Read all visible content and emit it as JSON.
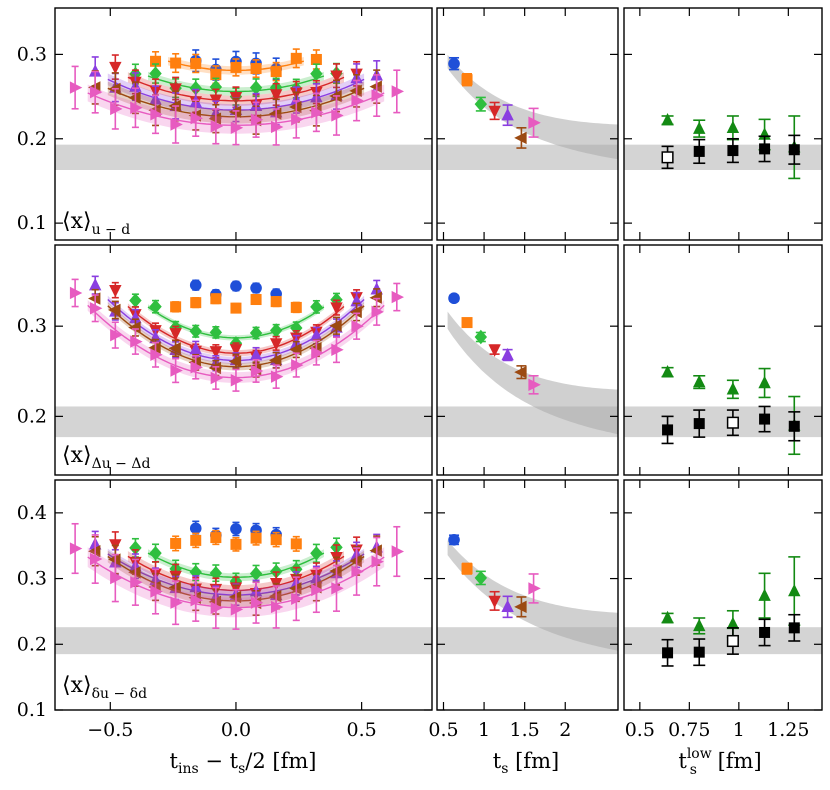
{
  "figure": {
    "columns": [
      {
        "xlabel_main": "t",
        "xlabel_sub": "ins",
        "xlabel_rest": " − t",
        "xlabel_sub2": "s",
        "xlabel_tail": "/2 [fm]"
      },
      {
        "xlabel_main": "t",
        "xlabel_sub": "s",
        "xlabel_tail": " [fm]"
      },
      {
        "xlabel_main": "t",
        "xlabel_sub": "s",
        "xlabel_sup": "low",
        "xlabel_tail": " [fm]"
      }
    ],
    "rows": [
      {
        "label_main": "⟨x⟩",
        "label_sub": "u − d"
      },
      {
        "label_main": "⟨x⟩",
        "label_sub": "Δu − Δd"
      },
      {
        "label_main": "⟨x⟩",
        "label_sub": "δu − δd"
      }
    ]
  },
  "chart_data": [
    {
      "type": "scatter",
      "panel": "row1-col1",
      "xlim": [
        -0.72,
        0.78
      ],
      "ylim": [
        0.08,
        0.355
      ],
      "xticks": [
        "−0.5",
        "0.0",
        "0.5"
      ],
      "xtick_values": [
        -0.5,
        0.0,
        0.5
      ],
      "yticks": [
        "0.1",
        "0.2",
        "0.3"
      ],
      "ytick_values": [
        0.1,
        0.2,
        0.3
      ],
      "band": [
        0.163,
        0.193
      ],
      "series": [
        {
          "color": "#1f4fd8",
          "marker": "circle",
          "half": 0.16,
          "base": 0.288,
          "curv": 0.0,
          "err": 0.012
        },
        {
          "color": "#ff7f0e",
          "marker": "square",
          "half": 0.32,
          "base": 0.281,
          "curv": 0.15,
          "err": 0.01
        },
        {
          "color": "#2fbf3f",
          "marker": "diamond",
          "half": 0.4,
          "base": 0.256,
          "curv": 0.15,
          "err": 0.01
        },
        {
          "color": "#d62728",
          "marker": "tri-down",
          "half": 0.48,
          "base": 0.245,
          "curv": 0.15,
          "err": 0.012
        },
        {
          "color": "#8a3ee0",
          "marker": "tri-up",
          "half": 0.56,
          "base": 0.234,
          "curv": 0.14,
          "err": 0.014
        },
        {
          "color": "#9c4a12",
          "marker": "tri-left",
          "half": 0.56,
          "base": 0.226,
          "curv": 0.13,
          "err": 0.016
        },
        {
          "color": "#e75bc0",
          "marker": "tri-right",
          "half": 0.64,
          "base": 0.216,
          "curv": 0.11,
          "err": 0.02
        }
      ]
    },
    {
      "type": "scatter",
      "panel": "row1-col2",
      "xlim": [
        0.42,
        2.65
      ],
      "ylim": [
        0.08,
        0.355
      ],
      "xticks": [
        "0.5",
        "1",
        "1.5",
        "2"
      ],
      "xtick_values": [
        0.5,
        1.0,
        1.5,
        2.0
      ],
      "band": [
        0.163,
        0.193
      ],
      "fit_band": {
        "asym": 0.188,
        "amp": 0.2,
        "decay": 1.2,
        "width": 0.01
      },
      "points": [
        {
          "x": 0.63,
          "y": 0.289,
          "err": 0.007,
          "color": "#1f4fd8",
          "marker": "circle"
        },
        {
          "x": 0.79,
          "y": 0.27,
          "err": 0.007,
          "color": "#ff7f0e",
          "marker": "square"
        },
        {
          "x": 0.96,
          "y": 0.241,
          "err": 0.008,
          "color": "#2fbf3f",
          "marker": "diamond"
        },
        {
          "x": 1.13,
          "y": 0.233,
          "err": 0.01,
          "color": "#d62728",
          "marker": "tri-down"
        },
        {
          "x": 1.29,
          "y": 0.228,
          "err": 0.012,
          "color": "#8a3ee0",
          "marker": "tri-up"
        },
        {
          "x": 1.46,
          "y": 0.201,
          "err": 0.012,
          "color": "#9c4a12",
          "marker": "tri-left"
        },
        {
          "x": 1.61,
          "y": 0.219,
          "err": 0.017,
          "color": "#e75bc0",
          "marker": "tri-right"
        }
      ]
    },
    {
      "type": "scatter",
      "panel": "row1-col3",
      "xlim": [
        0.42,
        1.42
      ],
      "ylim": [
        0.08,
        0.355
      ],
      "xticks": [
        "0.5",
        "0.75",
        "1",
        "1.25"
      ],
      "xtick_values": [
        0.5,
        0.75,
        1.0,
        1.25
      ],
      "band": [
        0.163,
        0.193
      ],
      "points": [
        {
          "x": 0.64,
          "y": 0.222,
          "err": 0.005,
          "color": "#138a13",
          "marker": "tri-up"
        },
        {
          "x": 0.8,
          "y": 0.212,
          "err": 0.01,
          "color": "#138a13",
          "marker": "tri-up"
        },
        {
          "x": 0.97,
          "y": 0.213,
          "err": 0.014,
          "color": "#138a13",
          "marker": "tri-up"
        },
        {
          "x": 1.13,
          "y": 0.205,
          "err": 0.018,
          "color": "#138a13",
          "marker": "tri-up"
        },
        {
          "x": 1.28,
          "y": 0.19,
          "err": 0.037,
          "color": "#138a13",
          "marker": "tri-up"
        },
        {
          "x": 0.64,
          "y": 0.178,
          "err": 0.013,
          "color": "#000000",
          "marker": "open-square"
        },
        {
          "x": 0.8,
          "y": 0.185,
          "err": 0.014,
          "color": "#000000",
          "marker": "square"
        },
        {
          "x": 0.97,
          "y": 0.186,
          "err": 0.014,
          "color": "#000000",
          "marker": "square"
        },
        {
          "x": 1.13,
          "y": 0.188,
          "err": 0.015,
          "color": "#000000",
          "marker": "square"
        },
        {
          "x": 1.28,
          "y": 0.187,
          "err": 0.017,
          "color": "#000000",
          "marker": "square"
        }
      ]
    },
    {
      "type": "scatter",
      "panel": "row2-col1",
      "xlim": [
        -0.72,
        0.78
      ],
      "ylim": [
        0.135,
        0.39
      ],
      "yticks": [
        "0.2",
        "0.3"
      ],
      "ytick_values": [
        0.2,
        0.3
      ],
      "band": [
        0.177,
        0.211
      ],
      "series": [
        {
          "color": "#1f4fd8",
          "marker": "circle",
          "half": 0.16,
          "base": 0.341,
          "curv": 0.0,
          "err": 0.005
        },
        {
          "color": "#ff7f0e",
          "marker": "square",
          "half": 0.24,
          "base": 0.326,
          "curv": 0.0,
          "err": 0.005
        },
        {
          "color": "#2fbf3f",
          "marker": "diamond",
          "half": 0.4,
          "base": 0.287,
          "curv": 0.28,
          "err": 0.006
        },
        {
          "color": "#d62728",
          "marker": "tri-down",
          "half": 0.48,
          "base": 0.27,
          "curv": 0.28,
          "err": 0.007
        },
        {
          "color": "#8a3ee0",
          "marker": "tri-up",
          "half": 0.56,
          "base": 0.262,
          "curv": 0.26,
          "err": 0.008
        },
        {
          "color": "#9c4a12",
          "marker": "tri-left",
          "half": 0.56,
          "base": 0.255,
          "curv": 0.26,
          "err": 0.008
        },
        {
          "color": "#e75bc0",
          "marker": "tri-right",
          "half": 0.64,
          "base": 0.243,
          "curv": 0.23,
          "err": 0.012
        }
      ]
    },
    {
      "type": "scatter",
      "panel": "row2-col2",
      "xlim": [
        0.42,
        2.65
      ],
      "ylim": [
        0.135,
        0.39
      ],
      "band": [
        0.177,
        0.211
      ],
      "fit_band": {
        "asym": 0.195,
        "amp": 0.21,
        "decay": 1.15,
        "width": 0.012
      },
      "points": [
        {
          "x": 0.63,
          "y": 0.331,
          "err": 0.003,
          "color": "#1f4fd8",
          "marker": "circle"
        },
        {
          "x": 0.79,
          "y": 0.304,
          "err": 0.004,
          "color": "#ff7f0e",
          "marker": "square"
        },
        {
          "x": 0.96,
          "y": 0.288,
          "err": 0.005,
          "color": "#2fbf3f",
          "marker": "diamond"
        },
        {
          "x": 1.13,
          "y": 0.274,
          "err": 0.005,
          "color": "#d62728",
          "marker": "tri-down"
        },
        {
          "x": 1.29,
          "y": 0.268,
          "err": 0.006,
          "color": "#8a3ee0",
          "marker": "tri-up"
        },
        {
          "x": 1.46,
          "y": 0.249,
          "err": 0.007,
          "color": "#9c4a12",
          "marker": "tri-left"
        },
        {
          "x": 1.61,
          "y": 0.235,
          "err": 0.01,
          "color": "#e75bc0",
          "marker": "tri-right"
        }
      ]
    },
    {
      "type": "scatter",
      "panel": "row2-col3",
      "xlim": [
        0.42,
        1.42
      ],
      "ylim": [
        0.135,
        0.39
      ],
      "band": [
        0.177,
        0.211
      ],
      "points": [
        {
          "x": 0.64,
          "y": 0.249,
          "err": 0.005,
          "color": "#138a13",
          "marker": "tri-up"
        },
        {
          "x": 0.8,
          "y": 0.238,
          "err": 0.007,
          "color": "#138a13",
          "marker": "tri-up"
        },
        {
          "x": 0.97,
          "y": 0.23,
          "err": 0.01,
          "color": "#138a13",
          "marker": "tri-up"
        },
        {
          "x": 1.13,
          "y": 0.237,
          "err": 0.016,
          "color": "#138a13",
          "marker": "tri-up"
        },
        {
          "x": 1.28,
          "y": 0.19,
          "err": 0.032,
          "color": "#138a13",
          "marker": "tri-up"
        },
        {
          "x": 0.64,
          "y": 0.185,
          "err": 0.015,
          "color": "#000000",
          "marker": "square"
        },
        {
          "x": 0.8,
          "y": 0.192,
          "err": 0.015,
          "color": "#000000",
          "marker": "square"
        },
        {
          "x": 0.97,
          "y": 0.193,
          "err": 0.014,
          "color": "#000000",
          "marker": "open-square"
        },
        {
          "x": 1.13,
          "y": 0.197,
          "err": 0.014,
          "color": "#000000",
          "marker": "square"
        },
        {
          "x": 1.28,
          "y": 0.189,
          "err": 0.016,
          "color": "#000000",
          "marker": "square"
        }
      ]
    },
    {
      "type": "scatter",
      "panel": "row3-col1",
      "xlim": [
        -0.72,
        0.78
      ],
      "ylim": [
        0.1,
        0.45
      ],
      "yticks": [
        "0.1",
        "0.2",
        "0.3",
        "0.4"
      ],
      "ytick_values": [
        0.1,
        0.2,
        0.3,
        0.4
      ],
      "band": [
        0.185,
        0.226
      ],
      "series": [
        {
          "color": "#1f4fd8",
          "marker": "circle",
          "half": 0.16,
          "base": 0.372,
          "curv": 0.0,
          "err": 0.01
        },
        {
          "color": "#ff7f0e",
          "marker": "square",
          "half": 0.24,
          "base": 0.358,
          "curv": 0.0,
          "err": 0.01
        },
        {
          "color": "#2fbf3f",
          "marker": "diamond",
          "half": 0.4,
          "base": 0.302,
          "curv": 0.3,
          "err": 0.012
        },
        {
          "color": "#d62728",
          "marker": "tri-down",
          "half": 0.48,
          "base": 0.282,
          "curv": 0.28,
          "err": 0.016
        },
        {
          "color": "#8a3ee0",
          "marker": "tri-up",
          "half": 0.56,
          "base": 0.275,
          "curv": 0.24,
          "err": 0.016
        },
        {
          "color": "#9c4a12",
          "marker": "tri-left",
          "half": 0.56,
          "base": 0.266,
          "curv": 0.26,
          "err": 0.018
        },
        {
          "color": "#e75bc0",
          "marker": "tri-right",
          "half": 0.64,
          "base": 0.256,
          "curv": 0.22,
          "err": 0.03
        }
      ]
    },
    {
      "type": "scatter",
      "panel": "row3-col2",
      "xlim": [
        0.42,
        2.65
      ],
      "ylim": [
        0.1,
        0.45
      ],
      "band": [
        0.185,
        0.226
      ],
      "fit_band": {
        "asym": 0.205,
        "amp": 0.26,
        "decay": 1.1,
        "width": 0.014
      },
      "points": [
        {
          "x": 0.63,
          "y": 0.359,
          "err": 0.007,
          "color": "#1f4fd8",
          "marker": "circle"
        },
        {
          "x": 0.79,
          "y": 0.315,
          "err": 0.008,
          "color": "#ff7f0e",
          "marker": "square"
        },
        {
          "x": 0.96,
          "y": 0.301,
          "err": 0.01,
          "color": "#2fbf3f",
          "marker": "diamond"
        },
        {
          "x": 1.13,
          "y": 0.266,
          "err": 0.014,
          "color": "#d62728",
          "marker": "tri-down"
        },
        {
          "x": 1.29,
          "y": 0.257,
          "err": 0.016,
          "color": "#8a3ee0",
          "marker": "tri-up"
        },
        {
          "x": 1.46,
          "y": 0.257,
          "err": 0.015,
          "color": "#9c4a12",
          "marker": "tri-left"
        },
        {
          "x": 1.61,
          "y": 0.285,
          "err": 0.022,
          "color": "#e75bc0",
          "marker": "tri-right"
        }
      ]
    },
    {
      "type": "scatter",
      "panel": "row3-col3",
      "xlim": [
        0.42,
        1.42
      ],
      "ylim": [
        0.1,
        0.45
      ],
      "band": [
        0.185,
        0.226
      ],
      "points": [
        {
          "x": 0.64,
          "y": 0.24,
          "err": 0.007,
          "color": "#138a13",
          "marker": "tri-up"
        },
        {
          "x": 0.8,
          "y": 0.228,
          "err": 0.012,
          "color": "#138a13",
          "marker": "tri-up"
        },
        {
          "x": 0.97,
          "y": 0.231,
          "err": 0.02,
          "color": "#138a13",
          "marker": "tri-up"
        },
        {
          "x": 1.13,
          "y": 0.274,
          "err": 0.034,
          "color": "#138a13",
          "marker": "tri-up"
        },
        {
          "x": 1.28,
          "y": 0.281,
          "err": 0.052,
          "color": "#138a13",
          "marker": "tri-up"
        },
        {
          "x": 0.64,
          "y": 0.187,
          "err": 0.02,
          "color": "#000000",
          "marker": "square"
        },
        {
          "x": 0.8,
          "y": 0.188,
          "err": 0.02,
          "color": "#000000",
          "marker": "square"
        },
        {
          "x": 0.97,
          "y": 0.205,
          "err": 0.02,
          "color": "#000000",
          "marker": "open-square"
        },
        {
          "x": 1.13,
          "y": 0.218,
          "err": 0.02,
          "color": "#000000",
          "marker": "square"
        },
        {
          "x": 1.28,
          "y": 0.225,
          "err": 0.02,
          "color": "#000000",
          "marker": "square"
        }
      ]
    }
  ]
}
